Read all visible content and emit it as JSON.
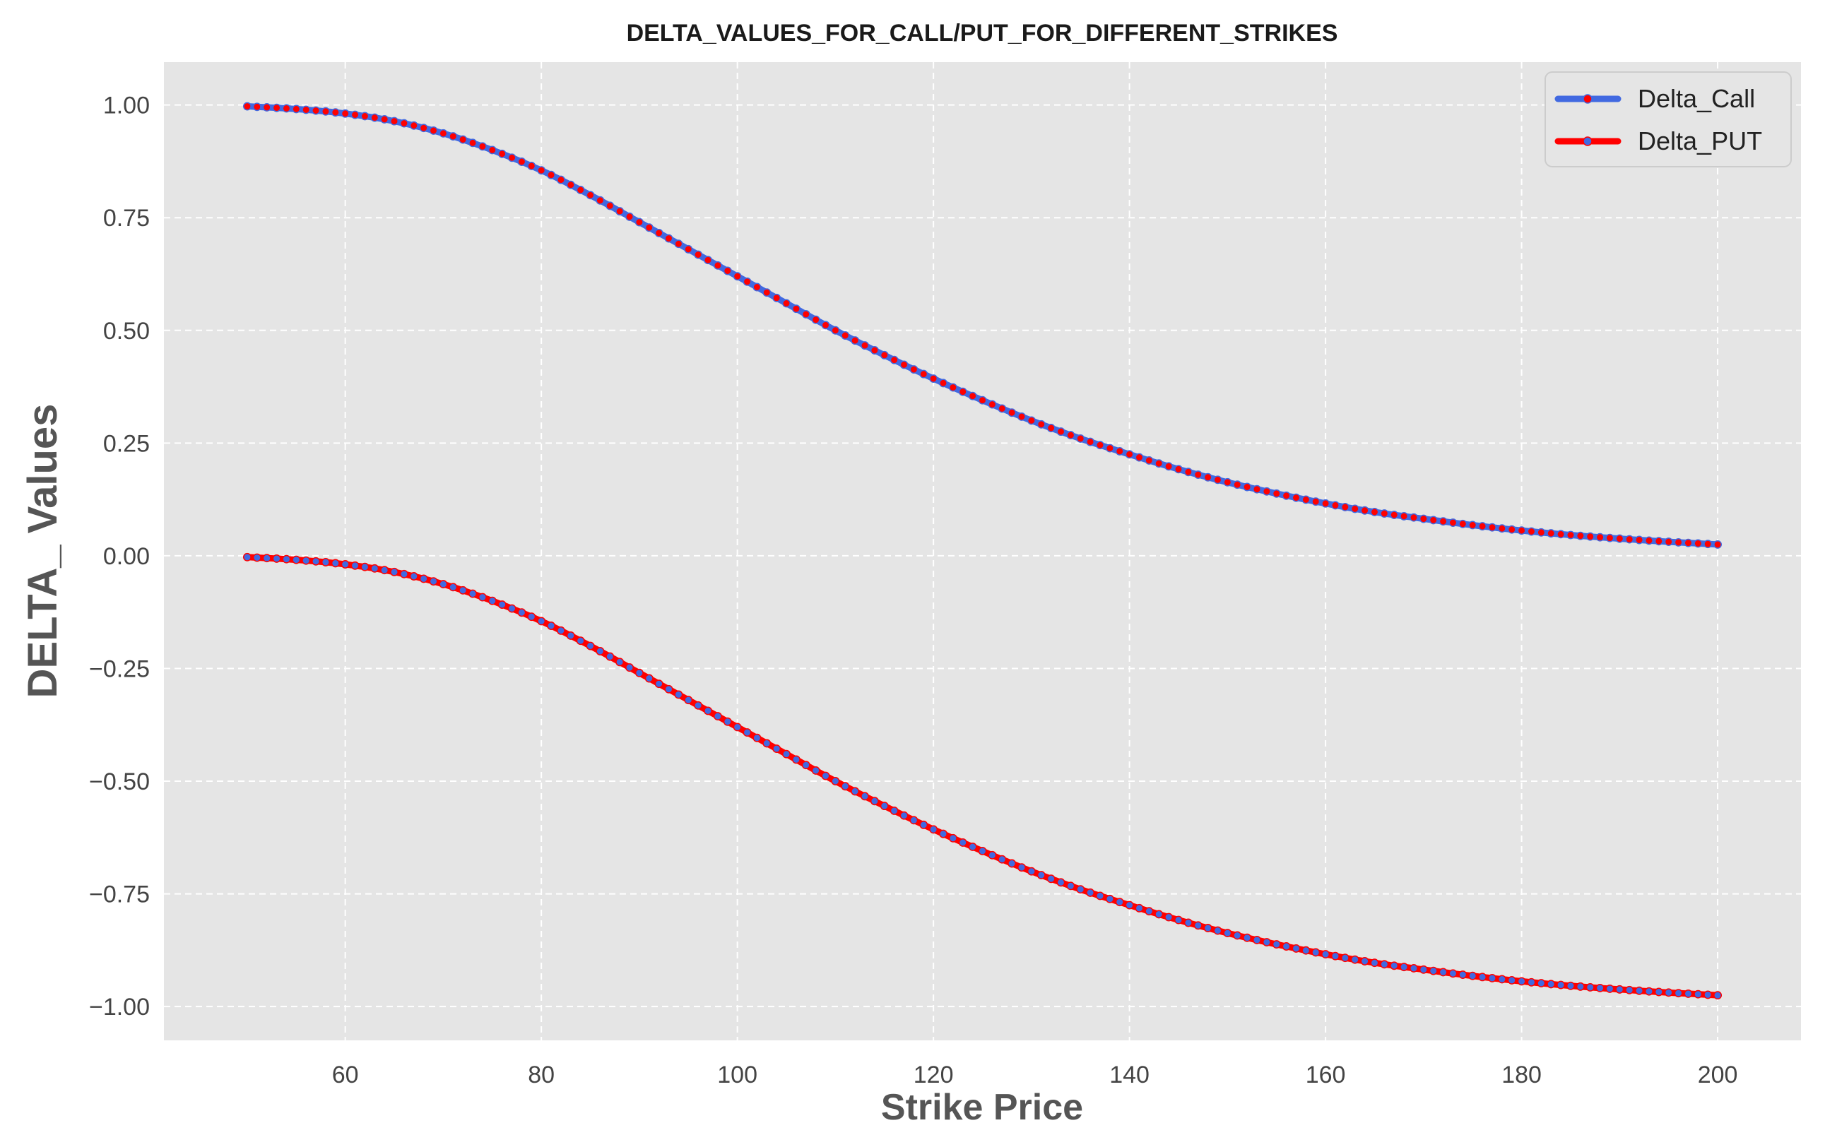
{
  "chart_data": {
    "type": "line",
    "title": "DELTA_VALUES_FOR_CALL/PUT_FOR_DIFFERENT_STRIKES",
    "xlabel": "Strike Price",
    "ylabel": "DELTA_ Values",
    "xlim": [
      41.5,
      208.5
    ],
    "ylim": [
      -1.075,
      1.095
    ],
    "xticks": [
      60,
      80,
      100,
      120,
      140,
      160,
      180,
      200
    ],
    "xtick_labels": [
      "60",
      "80",
      "100",
      "120",
      "140",
      "160",
      "180",
      "200"
    ],
    "yticks": [
      1.0,
      0.75,
      0.5,
      0.25,
      0.0,
      -0.25,
      -0.5,
      -0.75,
      -1.0
    ],
    "ytick_labels": [
      "1.00",
      "0.75",
      "0.50",
      "0.25",
      "0.00",
      "−0.25",
      "−0.50",
      "−0.75",
      "−1.00"
    ],
    "grid": true,
    "legend": "top-right",
    "x": [
      50,
      55,
      60,
      65,
      70,
      75,
      80,
      85,
      90,
      95,
      100,
      105,
      110,
      115,
      120,
      125,
      130,
      135,
      140,
      145,
      150,
      155,
      160,
      165,
      170,
      175,
      180,
      185,
      190,
      195,
      200
    ],
    "series": [
      {
        "name": "Delta_Call",
        "color": "#4169e1",
        "marker_color": "#ff0000",
        "values": [
          0.997,
          0.991,
          0.981,
          0.964,
          0.937,
          0.9,
          0.855,
          0.8,
          0.74,
          0.68,
          0.62,
          0.56,
          0.5,
          0.445,
          0.393,
          0.345,
          0.3,
          0.26,
          0.225,
          0.192,
          0.163,
          0.138,
          0.116,
          0.097,
          0.082,
          0.068,
          0.056,
          0.046,
          0.038,
          0.031,
          0.025
        ]
      },
      {
        "name": "Delta_PUT",
        "color": "#ff0000",
        "marker_color": "#4169e1",
        "values": [
          -0.003,
          -0.009,
          -0.019,
          -0.036,
          -0.063,
          -0.1,
          -0.145,
          -0.2,
          -0.26,
          -0.32,
          -0.38,
          -0.44,
          -0.5,
          -0.555,
          -0.607,
          -0.655,
          -0.7,
          -0.74,
          -0.775,
          -0.808,
          -0.837,
          -0.862,
          -0.884,
          -0.903,
          -0.918,
          -0.932,
          -0.944,
          -0.954,
          -0.962,
          -0.969,
          -0.975
        ]
      }
    ],
    "plot_background": "#e5e5e5"
  }
}
